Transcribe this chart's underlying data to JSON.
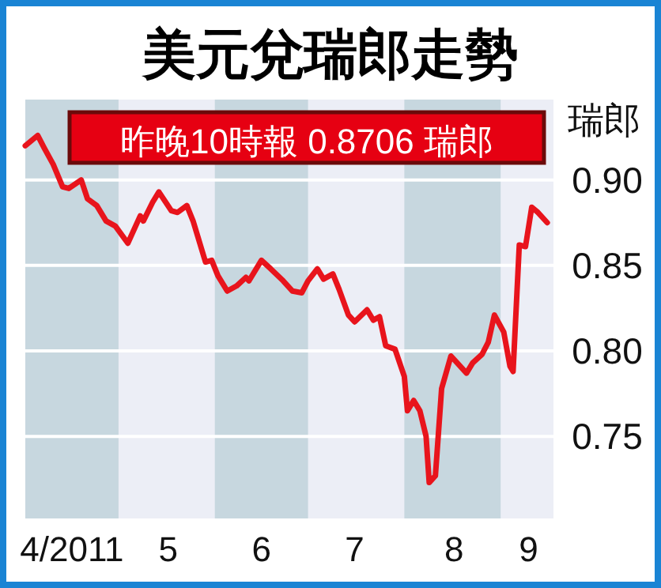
{
  "chart_data": {
    "type": "line",
    "title": "美元兌瑞郎走勢",
    "ylabel": "瑞郎",
    "annotations": [
      "昨晚10時報 0.8706 瑞郎"
    ],
    "xlim": [
      "2011-04-01",
      "2011-09-18"
    ],
    "ylim": [
      0.702,
      0.947
    ],
    "xticks": [
      {
        "value": "2011-04-16",
        "label": "4/2011"
      },
      {
        "value": "2011-05-17",
        "label": "5"
      },
      {
        "value": "2011-06-16",
        "label": "6"
      },
      {
        "value": "2011-07-16",
        "label": "7"
      },
      {
        "value": "2011-08-17",
        "label": "8"
      },
      {
        "value": "2011-09-10",
        "label": "9"
      }
    ],
    "yticks": [
      {
        "value": 0.75,
        "label": "0.75"
      },
      {
        "value": 0.8,
        "label": "0.80"
      },
      {
        "value": 0.85,
        "label": "0.85"
      },
      {
        "value": 0.9,
        "label": "0.90"
      }
    ],
    "grid": "y",
    "bands": [
      {
        "axis": "x",
        "from": "2011-04-01",
        "to": "2011-05-01",
        "color": "#c7d7df"
      },
      {
        "axis": "x",
        "from": "2011-06-01",
        "to": "2011-07-01",
        "color": "#c7d7df"
      },
      {
        "axis": "x",
        "from": "2011-08-01",
        "to": "2011-09-01",
        "color": "#c7d7df"
      }
    ],
    "series": [
      {
        "color": "#e8141c",
        "x": [
          "2011-04-01",
          "2011-04-05",
          "2011-04-07",
          "2011-04-10",
          "2011-04-13",
          "2011-04-15",
          "2011-04-19",
          "2011-04-21",
          "2011-04-24",
          "2011-04-27",
          "2011-04-30",
          "2011-05-04",
          "2011-05-08",
          "2011-05-09",
          "2011-05-12",
          "2011-05-14",
          "2011-05-18",
          "2011-05-20",
          "2011-05-23",
          "2011-05-25",
          "2011-05-29",
          "2011-05-31",
          "2011-06-02",
          "2011-06-05",
          "2011-06-08",
          "2011-06-11",
          "2011-06-12",
          "2011-06-16",
          "2011-06-19",
          "2011-06-23",
          "2011-06-26",
          "2011-06-29",
          "2011-07-01",
          "2011-07-04",
          "2011-07-06",
          "2011-07-09",
          "2011-07-11",
          "2011-07-14",
          "2011-07-16",
          "2011-07-20",
          "2011-07-22",
          "2011-07-24",
          "2011-07-26",
          "2011-07-29",
          "2011-08-01",
          "2011-08-02",
          "2011-08-04",
          "2011-08-06",
          "2011-08-08",
          "2011-08-09",
          "2011-08-11",
          "2011-08-13",
          "2011-08-16",
          "2011-08-18",
          "2011-08-21",
          "2011-08-23",
          "2011-08-26",
          "2011-08-28",
          "2011-08-30",
          "2011-09-02",
          "2011-09-04",
          "2011-09-05",
          "2011-09-07",
          "2011-09-09",
          "2011-09-11",
          "2011-09-13",
          "2011-09-16"
        ],
        "values": [
          0.92,
          0.926,
          0.919,
          0.909,
          0.896,
          0.895,
          0.9,
          0.889,
          0.885,
          0.876,
          0.873,
          0.863,
          0.879,
          0.876,
          0.887,
          0.893,
          0.882,
          0.881,
          0.885,
          0.876,
          0.852,
          0.853,
          0.844,
          0.835,
          0.838,
          0.843,
          0.841,
          0.853,
          0.848,
          0.841,
          0.835,
          0.834,
          0.841,
          0.848,
          0.842,
          0.845,
          0.836,
          0.821,
          0.817,
          0.824,
          0.818,
          0.82,
          0.803,
          0.801,
          0.785,
          0.765,
          0.771,
          0.765,
          0.75,
          0.723,
          0.727,
          0.778,
          0.797,
          0.793,
          0.787,
          0.793,
          0.798,
          0.805,
          0.821,
          0.811,
          0.791,
          0.788,
          0.862,
          0.861,
          0.884,
          0.881,
          0.875
        ]
      }
    ]
  }
}
